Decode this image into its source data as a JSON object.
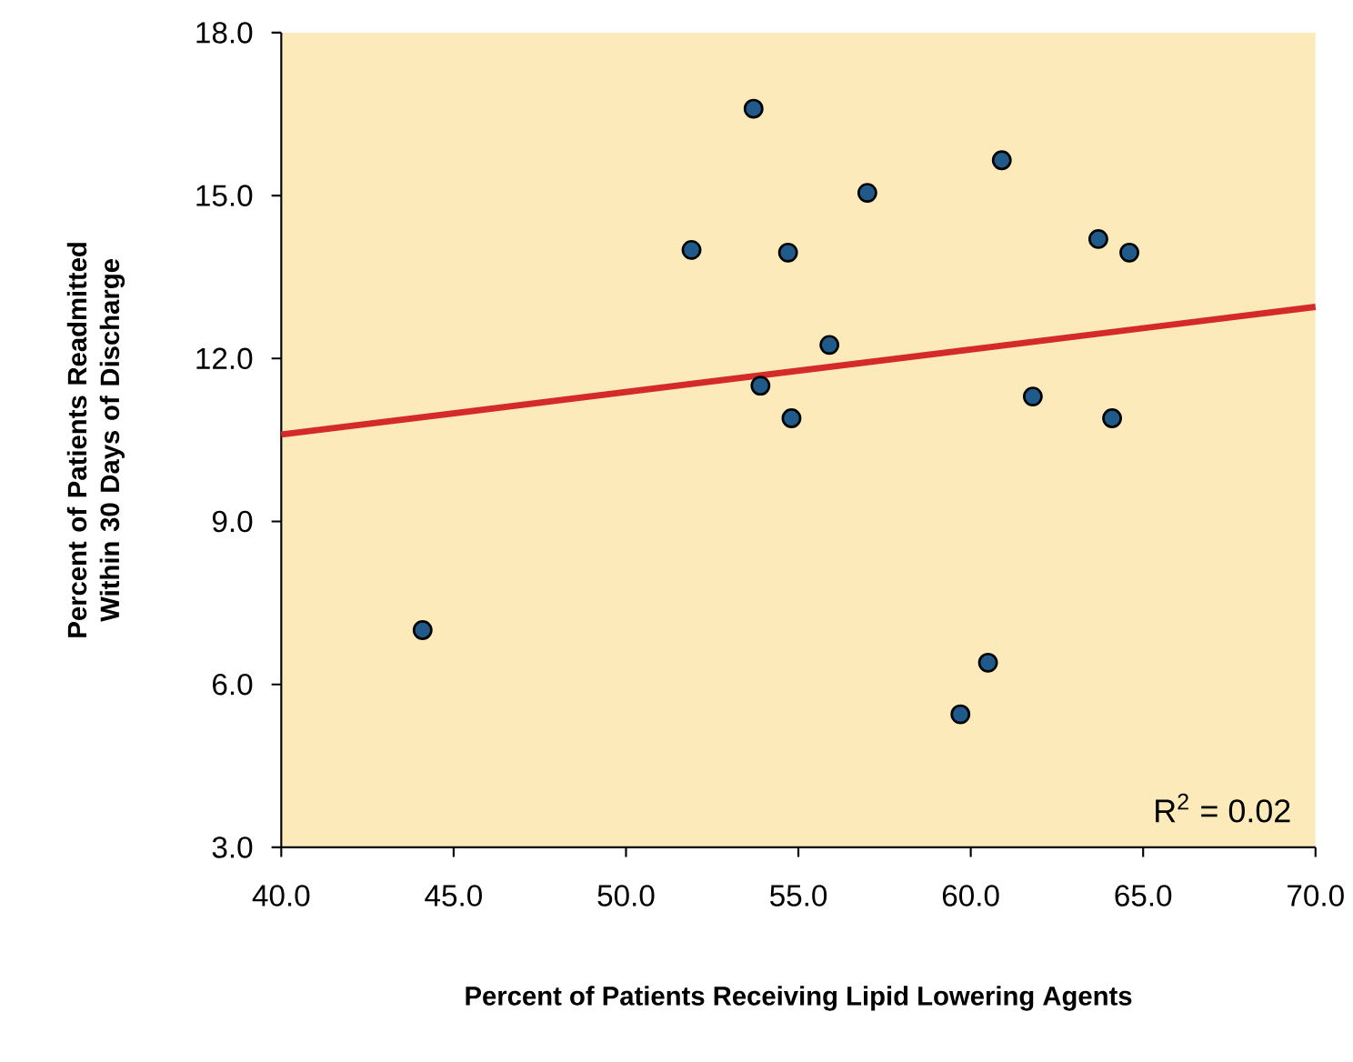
{
  "chart_data": {
    "type": "scatter",
    "xlabel": "Percent of Patients Receiving Lipid Lowering Agents",
    "ylabel": "Percent of Patients Readmitted Within 30 Days of Discharge",
    "xlim": [
      40,
      70
    ],
    "ylim": [
      3,
      18
    ],
    "xticks": [
      {
        "value": 40,
        "label": "40.0"
      },
      {
        "value": 45,
        "label": "45.0"
      },
      {
        "value": 50,
        "label": "50.0"
      },
      {
        "value": 55,
        "label": "55.0"
      },
      {
        "value": 60,
        "label": "60.0"
      },
      {
        "value": 65,
        "label": "65.0"
      },
      {
        "value": 70,
        "label": "70.0"
      }
    ],
    "yticks": [
      {
        "value": 3,
        "label": "3.0"
      },
      {
        "value": 6,
        "label": "6.0"
      },
      {
        "value": 9,
        "label": "9.0"
      },
      {
        "value": 12,
        "label": "12.0"
      },
      {
        "value": 15,
        "label": "15.0"
      },
      {
        "value": 18,
        "label": "18.0"
      }
    ],
    "series": [
      {
        "color": "#1f5a8a",
        "x": [
          44.1,
          51.9,
          53.7,
          53.9,
          54.7,
          54.8,
          55.9,
          57.0,
          59.7,
          60.5,
          60.9,
          61.8,
          63.7,
          64.1,
          64.6
        ],
        "values": [
          7.0,
          14.0,
          16.6,
          11.5,
          13.95,
          10.9,
          12.25,
          15.05,
          5.45,
          6.4,
          15.65,
          11.3,
          14.2,
          10.9,
          13.95
        ]
      },
      {
        "type": "line",
        "color": "#d42a2a",
        "x": [
          40,
          70
        ],
        "values": [
          10.6,
          12.95
        ]
      }
    ],
    "annotations": [
      {
        "text": "R$^{2}$ = 0.02"
      }
    ]
  }
}
